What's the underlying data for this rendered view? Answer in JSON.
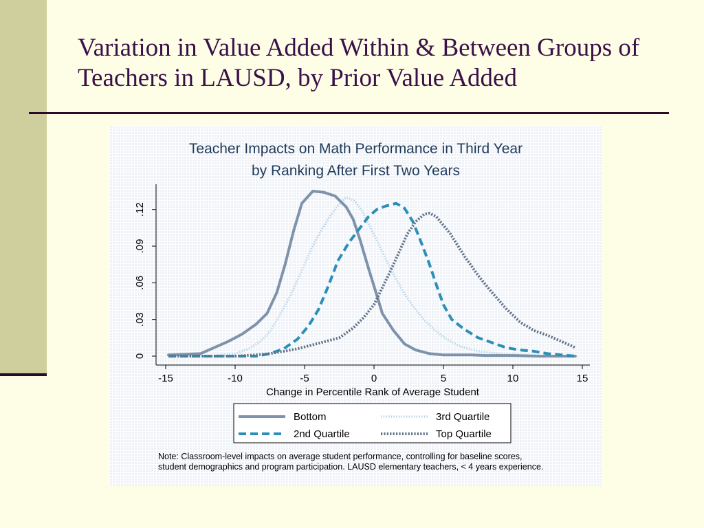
{
  "slide": {
    "title": "Variation in Value Added Within & Between Groups of Teachers in LAUSD, by Prior Value Added"
  },
  "chart_data": {
    "type": "line",
    "title_line1": "Teacher Impacts on Math Performance in Third Year",
    "title_line2": "by Ranking After First Two Years",
    "xlabel": "Change in Percentile Rank of Average Student",
    "ylabel": "",
    "xlim": [
      -15,
      15
    ],
    "ylim": [
      0,
      0.135
    ],
    "x_ticks": [
      -15,
      -10,
      -5,
      0,
      5,
      10,
      15
    ],
    "x_tick_labels": [
      "-15",
      "-10",
      "-5",
      "0",
      "5",
      "10",
      "15"
    ],
    "y_ticks": [
      0,
      0.03,
      0.06,
      0.09,
      0.12
    ],
    "y_tick_labels": [
      "0",
      ".03",
      ".06",
      ".09",
      ".12"
    ],
    "grid": false,
    "legend_position": "bottom",
    "note_line1": "Note: Classroom-level impacts on average student performance, controlling for baseline scores,",
    "note_line2": "student demographics and program participation.  LAUSD elementary teachers, < 4 years experience.",
    "series": [
      {
        "name": "Bottom",
        "style": "solid",
        "color": "#7e93aa",
        "points": [
          [
            -14.8,
            0.001
          ],
          [
            -12.5,
            0.002
          ],
          [
            -11.5,
            0.007
          ],
          [
            -10.5,
            0.012
          ],
          [
            -9.5,
            0.018
          ],
          [
            -8.5,
            0.026
          ],
          [
            -7.7,
            0.035
          ],
          [
            -7,
            0.052
          ],
          [
            -6.4,
            0.075
          ],
          [
            -5.8,
            0.102
          ],
          [
            -5.2,
            0.125
          ],
          [
            -4.4,
            0.135
          ],
          [
            -3.6,
            0.134
          ],
          [
            -2.8,
            0.131
          ],
          [
            -2,
            0.122
          ],
          [
            -1.5,
            0.112
          ],
          [
            -1,
            0.095
          ],
          [
            -0.4,
            0.072
          ],
          [
            0.2,
            0.05
          ],
          [
            0.6,
            0.035
          ],
          [
            1.4,
            0.021
          ],
          [
            2.2,
            0.01
          ],
          [
            3,
            0.005
          ],
          [
            4,
            0.002
          ],
          [
            5,
            0.001
          ],
          [
            6,
            0.001
          ],
          [
            7,
            0.001
          ],
          [
            8,
            0.0005
          ],
          [
            10,
            0.0005
          ],
          [
            12,
            0
          ],
          [
            14.5,
            0
          ]
        ]
      },
      {
        "name": "2nd Quartile",
        "style": "dash",
        "color": "#2b8fb8",
        "points": [
          [
            -14.8,
            0
          ],
          [
            -12,
            0
          ],
          [
            -10,
            0
          ],
          [
            -8.5,
            0
          ],
          [
            -7.5,
            0.002
          ],
          [
            -6.5,
            0.006
          ],
          [
            -5.5,
            0.014
          ],
          [
            -4.7,
            0.025
          ],
          [
            -4,
            0.038
          ],
          [
            -3.3,
            0.057
          ],
          [
            -2.6,
            0.078
          ],
          [
            -1.8,
            0.093
          ],
          [
            -1,
            0.105
          ],
          [
            -0.4,
            0.114
          ],
          [
            0.2,
            0.12
          ],
          [
            0.9,
            0.123
          ],
          [
            1.6,
            0.125
          ],
          [
            2.2,
            0.121
          ],
          [
            2.8,
            0.11
          ],
          [
            3.4,
            0.093
          ],
          [
            4,
            0.075
          ],
          [
            4.5,
            0.058
          ],
          [
            5,
            0.042
          ],
          [
            5.6,
            0.03
          ],
          [
            6.5,
            0.022
          ],
          [
            7.5,
            0.015
          ],
          [
            8.5,
            0.011
          ],
          [
            9.5,
            0.007
          ],
          [
            10.5,
            0.005
          ],
          [
            11.5,
            0.004
          ],
          [
            12.5,
            0.002
          ],
          [
            14.5,
            0
          ]
        ]
      },
      {
        "name": "3rd Quartile",
        "style": "dot",
        "color": "#b8d4e8",
        "points": [
          [
            -14.8,
            0
          ],
          [
            -12,
            0
          ],
          [
            -10,
            0.002
          ],
          [
            -9,
            0.006
          ],
          [
            -8.2,
            0.012
          ],
          [
            -7.5,
            0.02
          ],
          [
            -6.8,
            0.033
          ],
          [
            -6,
            0.05
          ],
          [
            -5.2,
            0.07
          ],
          [
            -4.5,
            0.088
          ],
          [
            -3.8,
            0.103
          ],
          [
            -3.2,
            0.114
          ],
          [
            -2.6,
            0.123
          ],
          [
            -2,
            0.13
          ],
          [
            -1.4,
            0.127
          ],
          [
            -0.8,
            0.118
          ],
          [
            -0.2,
            0.104
          ],
          [
            0.4,
            0.09
          ],
          [
            1,
            0.076
          ],
          [
            1.6,
            0.063
          ],
          [
            2.2,
            0.051
          ],
          [
            2.8,
            0.041
          ],
          [
            3.5,
            0.031
          ],
          [
            4.3,
            0.022
          ],
          [
            5.2,
            0.014
          ],
          [
            6.2,
            0.008
          ],
          [
            7.5,
            0.004
          ],
          [
            9,
            0.002
          ],
          [
            10.5,
            0.001
          ],
          [
            12.5,
            0
          ],
          [
            14.5,
            0
          ]
        ]
      },
      {
        "name": "Top Quartile",
        "style": "densedot",
        "color": "#5f7188",
        "points": [
          [
            -14.8,
            0
          ],
          [
            -12,
            0
          ],
          [
            -10,
            0
          ],
          [
            -8.5,
            0.001
          ],
          [
            -7.5,
            0.002
          ],
          [
            -6.5,
            0.004
          ],
          [
            -5.5,
            0.006
          ],
          [
            -4.5,
            0.009
          ],
          [
            -3.5,
            0.012
          ],
          [
            -2.5,
            0.015
          ],
          [
            -1.5,
            0.023
          ],
          [
            -0.8,
            0.031
          ],
          [
            0,
            0.042
          ],
          [
            0.6,
            0.056
          ],
          [
            1.2,
            0.07
          ],
          [
            1.8,
            0.085
          ],
          [
            2.4,
            0.1
          ],
          [
            3,
            0.11
          ],
          [
            3.6,
            0.116
          ],
          [
            4,
            0.117
          ],
          [
            4.5,
            0.114
          ],
          [
            5.5,
            0.1
          ],
          [
            6.5,
            0.082
          ],
          [
            7.5,
            0.066
          ],
          [
            8.5,
            0.052
          ],
          [
            9.5,
            0.039
          ],
          [
            10.5,
            0.028
          ],
          [
            11.5,
            0.021
          ],
          [
            12.5,
            0.017
          ],
          [
            13.5,
            0.012
          ],
          [
            14.5,
            0.007
          ]
        ]
      }
    ]
  }
}
